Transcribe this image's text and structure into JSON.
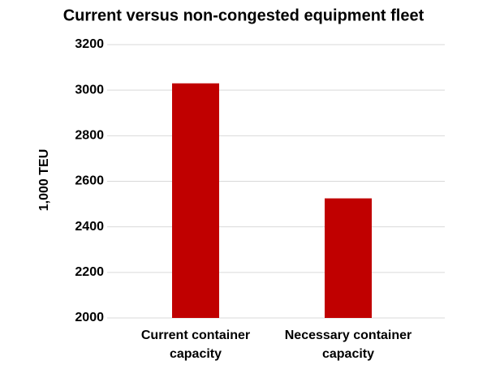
{
  "chart_data": {
    "type": "bar",
    "title": "Current versus non-congested equipment fleet",
    "y_label": "1,000 TEU",
    "categories": [
      "Current container capacity",
      "Necessary container capacity"
    ],
    "values": [
      3030,
      2525
    ],
    "color": "#c00000",
    "ylim": [
      2000,
      3200
    ],
    "yticks": [
      2000,
      2200,
      2400,
      2600,
      2800,
      3000,
      3200
    ],
    "grid": true
  }
}
